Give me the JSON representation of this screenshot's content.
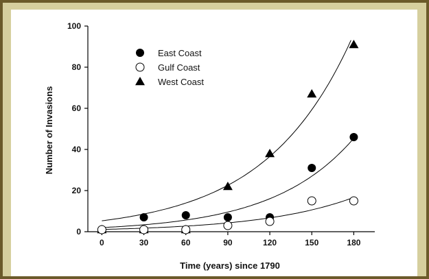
{
  "chart_data": {
    "type": "scatter",
    "xlabel": "Time (years) since 1790",
    "ylabel": "Number of Invasions",
    "xticks": [
      0,
      30,
      60,
      90,
      120,
      150,
      180
    ],
    "yticks": [
      0,
      20,
      40,
      60,
      80,
      100
    ],
    "xlim": [
      -10,
      195
    ],
    "ylim": [
      0,
      100
    ],
    "grid": false,
    "legend_position": "top-left",
    "series": [
      {
        "name": "East Coast",
        "marker": "filled-circle",
        "color": "#000000",
        "x": [
          0,
          30,
          60,
          90,
          120,
          150,
          180
        ],
        "y": [
          1,
          7,
          8,
          7,
          7,
          31,
          46
        ],
        "fit": {
          "a": 2.0,
          "b": 0.01735,
          "x_end": 180
        }
      },
      {
        "name": "Gulf Coast",
        "marker": "open-circle",
        "color": "#000000",
        "x": [
          0,
          30,
          60,
          90,
          120,
          150,
          180
        ],
        "y": [
          1,
          1,
          1,
          3,
          5,
          15,
          15
        ],
        "fit": {
          "a": 1.1,
          "b": 0.0151,
          "x_end": 180
        }
      },
      {
        "name": "West Coast",
        "marker": "filled-triangle",
        "color": "#000000",
        "x": [
          0,
          30,
          60,
          90,
          120,
          150,
          180
        ],
        "y": [
          1,
          1,
          1,
          22,
          38,
          67,
          91
        ],
        "fit": {
          "a": 5.3,
          "b": 0.0161,
          "x_end": 178
        }
      }
    ]
  }
}
